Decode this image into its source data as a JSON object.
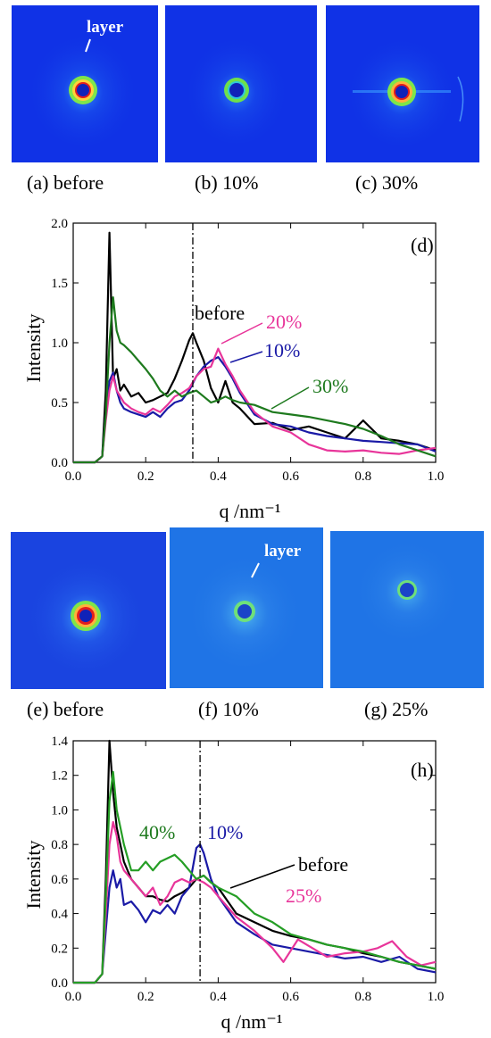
{
  "patterns_top": [
    {
      "caption": "(a) before",
      "annotation": "layer",
      "bg": "#1032e6",
      "ring": "strong",
      "streak": false
    },
    {
      "caption": "(b) 10%",
      "annotation": "",
      "bg": "#1032e6",
      "ring": "medium",
      "streak": false
    },
    {
      "caption": "(c) 30%",
      "annotation": "",
      "bg": "#1032e6",
      "ring": "strong",
      "streak": true
    }
  ],
  "patterns_bottom": [
    {
      "caption": "(e) before",
      "annotation": "",
      "bg": "#1a44e0",
      "ring": "strong",
      "streak": false
    },
    {
      "caption": "(f) 10%",
      "annotation": "layer",
      "bg": "#1f74e6",
      "ring": "weak",
      "streak": false
    },
    {
      "caption": "(g) 25%",
      "annotation": "",
      "bg": "#1f74e6",
      "ring": "weak",
      "streak": false
    }
  ],
  "chart_data": [
    {
      "type": "line",
      "panel_label": "(d)",
      "xlabel": "q /nm⁻¹",
      "ylabel": "Intensity",
      "xlim": [
        0.0,
        1.0
      ],
      "ylim": [
        0.0,
        2.0
      ],
      "xticks": [
        "0.0",
        "0.2",
        "0.4",
        "0.6",
        "0.8",
        "1.0"
      ],
      "yticks": [
        "0.0",
        "0.5",
        "1.0",
        "1.5",
        "2.0"
      ],
      "reference_line_q": 0.33,
      "series": [
        {
          "name": "before",
          "color": "#000000",
          "label_color": "#000000",
          "x": [
            0.0,
            0.06,
            0.08,
            0.09,
            0.1,
            0.11,
            0.12,
            0.13,
            0.14,
            0.16,
            0.18,
            0.2,
            0.22,
            0.24,
            0.26,
            0.28,
            0.3,
            0.32,
            0.33,
            0.34,
            0.36,
            0.38,
            0.4,
            0.42,
            0.44,
            0.46,
            0.5,
            0.55,
            0.6,
            0.65,
            0.7,
            0.75,
            0.8,
            0.85,
            0.9,
            0.95,
            1.0
          ],
          "y": [
            0.0,
            0.0,
            0.05,
            0.6,
            1.92,
            0.7,
            0.78,
            0.6,
            0.65,
            0.55,
            0.58,
            0.5,
            0.52,
            0.55,
            0.58,
            0.7,
            0.85,
            1.02,
            1.08,
            1.0,
            0.85,
            0.62,
            0.5,
            0.68,
            0.5,
            0.45,
            0.32,
            0.33,
            0.27,
            0.3,
            0.25,
            0.2,
            0.35,
            0.2,
            0.18,
            0.15,
            0.1
          ]
        },
        {
          "name": "10%",
          "color": "#1a1aa6",
          "label_color": "#1a1aa6",
          "x": [
            0.0,
            0.06,
            0.08,
            0.09,
            0.1,
            0.11,
            0.12,
            0.13,
            0.14,
            0.16,
            0.18,
            0.2,
            0.22,
            0.24,
            0.26,
            0.28,
            0.3,
            0.32,
            0.34,
            0.36,
            0.38,
            0.4,
            0.42,
            0.44,
            0.46,
            0.5,
            0.55,
            0.6,
            0.65,
            0.7,
            0.75,
            0.8,
            0.85,
            0.9,
            0.95,
            1.0
          ],
          "y": [
            0.0,
            0.0,
            0.05,
            0.4,
            0.68,
            0.75,
            0.6,
            0.5,
            0.45,
            0.42,
            0.4,
            0.38,
            0.42,
            0.38,
            0.45,
            0.5,
            0.52,
            0.6,
            0.72,
            0.8,
            0.85,
            0.88,
            0.8,
            0.7,
            0.58,
            0.4,
            0.32,
            0.3,
            0.25,
            0.22,
            0.2,
            0.18,
            0.17,
            0.16,
            0.15,
            0.09
          ]
        },
        {
          "name": "20%",
          "color": "#e8359a",
          "label_color": "#e8359a",
          "x": [
            0.0,
            0.06,
            0.08,
            0.09,
            0.1,
            0.11,
            0.12,
            0.13,
            0.14,
            0.16,
            0.18,
            0.2,
            0.22,
            0.24,
            0.26,
            0.28,
            0.3,
            0.32,
            0.34,
            0.36,
            0.38,
            0.4,
            0.42,
            0.44,
            0.46,
            0.5,
            0.55,
            0.6,
            0.65,
            0.7,
            0.75,
            0.8,
            0.85,
            0.9,
            0.95,
            1.0
          ],
          "y": [
            0.0,
            0.0,
            0.05,
            0.35,
            0.6,
            0.72,
            0.6,
            0.55,
            0.5,
            0.45,
            0.42,
            0.4,
            0.45,
            0.42,
            0.48,
            0.55,
            0.58,
            0.62,
            0.72,
            0.78,
            0.8,
            0.95,
            0.82,
            0.72,
            0.6,
            0.42,
            0.3,
            0.25,
            0.15,
            0.1,
            0.09,
            0.1,
            0.08,
            0.07,
            0.1,
            0.12
          ]
        },
        {
          "name": "30%",
          "color": "#1e7a1e",
          "label_color": "#1e7a1e",
          "x": [
            0.0,
            0.06,
            0.08,
            0.09,
            0.1,
            0.11,
            0.12,
            0.13,
            0.14,
            0.16,
            0.18,
            0.2,
            0.22,
            0.24,
            0.26,
            0.28,
            0.3,
            0.32,
            0.34,
            0.36,
            0.38,
            0.4,
            0.42,
            0.44,
            0.46,
            0.5,
            0.55,
            0.6,
            0.65,
            0.7,
            0.75,
            0.8,
            0.85,
            0.9,
            0.95,
            1.0
          ],
          "y": [
            0.0,
            0.0,
            0.05,
            0.4,
            1.0,
            1.38,
            1.1,
            1.0,
            0.98,
            0.92,
            0.85,
            0.78,
            0.7,
            0.6,
            0.55,
            0.6,
            0.55,
            0.58,
            0.6,
            0.55,
            0.5,
            0.52,
            0.55,
            0.52,
            0.5,
            0.48,
            0.42,
            0.4,
            0.38,
            0.35,
            0.32,
            0.28,
            0.22,
            0.15,
            0.1,
            0.05
          ]
        }
      ],
      "annotations": [
        "before",
        "20%",
        "10%",
        "30%"
      ]
    },
    {
      "type": "line",
      "panel_label": "(h)",
      "xlabel": "q /nm⁻¹",
      "ylabel": "Intensity",
      "xlim": [
        0.0,
        1.0
      ],
      "ylim": [
        0.0,
        1.4
      ],
      "xticks": [
        "0.0",
        "0.2",
        "0.4",
        "0.6",
        "0.8",
        "1.0"
      ],
      "yticks": [
        "0.0",
        "0.2",
        "0.4",
        "0.6",
        "0.8",
        "1.0",
        "1.2",
        "1.4"
      ],
      "reference_line_q": 0.35,
      "series": [
        {
          "name": "before",
          "color": "#000000",
          "label_color": "#000000",
          "x": [
            0.0,
            0.06,
            0.08,
            0.09,
            0.1,
            0.11,
            0.12,
            0.13,
            0.14,
            0.16,
            0.18,
            0.2,
            0.22,
            0.24,
            0.26,
            0.28,
            0.3,
            0.32,
            0.34,
            0.36,
            0.38,
            0.4,
            0.45,
            0.5,
            0.55,
            0.6,
            0.65,
            0.7,
            0.75,
            0.8,
            0.85,
            0.9,
            0.95,
            1.0
          ],
          "y": [
            0.0,
            0.0,
            0.05,
            0.6,
            1.4,
            1.1,
            0.9,
            0.8,
            0.7,
            0.6,
            0.55,
            0.5,
            0.5,
            0.48,
            0.47,
            0.5,
            0.52,
            0.55,
            0.6,
            0.62,
            0.58,
            0.55,
            0.4,
            0.35,
            0.3,
            0.27,
            0.25,
            0.22,
            0.2,
            0.17,
            0.15,
            0.12,
            0.1,
            0.08
          ]
        },
        {
          "name": "10%",
          "color": "#1a1aa6",
          "label_color": "#1a1aa6",
          "x": [
            0.0,
            0.06,
            0.08,
            0.09,
            0.1,
            0.11,
            0.12,
            0.13,
            0.14,
            0.16,
            0.18,
            0.2,
            0.22,
            0.24,
            0.26,
            0.28,
            0.3,
            0.32,
            0.34,
            0.35,
            0.36,
            0.38,
            0.4,
            0.45,
            0.5,
            0.55,
            0.6,
            0.65,
            0.7,
            0.75,
            0.8,
            0.85,
            0.9,
            0.95,
            1.0
          ],
          "y": [
            0.0,
            0.0,
            0.05,
            0.3,
            0.55,
            0.65,
            0.55,
            0.6,
            0.45,
            0.47,
            0.42,
            0.35,
            0.42,
            0.4,
            0.45,
            0.4,
            0.5,
            0.55,
            0.78,
            0.8,
            0.75,
            0.6,
            0.5,
            0.35,
            0.28,
            0.22,
            0.2,
            0.18,
            0.16,
            0.14,
            0.15,
            0.12,
            0.15,
            0.08,
            0.06
          ]
        },
        {
          "name": "25%",
          "color": "#e8359a",
          "label_color": "#e8359a",
          "x": [
            0.0,
            0.06,
            0.08,
            0.09,
            0.1,
            0.11,
            0.12,
            0.13,
            0.14,
            0.16,
            0.18,
            0.2,
            0.22,
            0.24,
            0.26,
            0.28,
            0.3,
            0.32,
            0.34,
            0.36,
            0.38,
            0.4,
            0.45,
            0.5,
            0.55,
            0.58,
            0.62,
            0.66,
            0.7,
            0.75,
            0.8,
            0.84,
            0.88,
            0.92,
            0.96,
            1.0
          ],
          "y": [
            0.0,
            0.0,
            0.05,
            0.4,
            0.8,
            0.93,
            0.85,
            0.7,
            0.65,
            0.6,
            0.55,
            0.5,
            0.55,
            0.45,
            0.5,
            0.58,
            0.6,
            0.58,
            0.6,
            0.58,
            0.55,
            0.5,
            0.38,
            0.3,
            0.2,
            0.12,
            0.25,
            0.2,
            0.15,
            0.17,
            0.18,
            0.2,
            0.24,
            0.15,
            0.1,
            0.12
          ]
        },
        {
          "name": "40%",
          "color": "#259e25",
          "label_color": "#1e7a1e",
          "x": [
            0.0,
            0.06,
            0.08,
            0.09,
            0.1,
            0.11,
            0.12,
            0.13,
            0.14,
            0.16,
            0.18,
            0.2,
            0.22,
            0.24,
            0.26,
            0.28,
            0.3,
            0.32,
            0.34,
            0.36,
            0.38,
            0.4,
            0.45,
            0.5,
            0.55,
            0.6,
            0.65,
            0.7,
            0.75,
            0.8,
            0.85,
            0.9,
            0.95,
            1.0
          ],
          "y": [
            0.0,
            0.0,
            0.05,
            0.5,
            1.05,
            1.22,
            1.0,
            0.9,
            0.8,
            0.65,
            0.65,
            0.7,
            0.65,
            0.7,
            0.72,
            0.74,
            0.7,
            0.65,
            0.6,
            0.62,
            0.58,
            0.55,
            0.5,
            0.4,
            0.35,
            0.28,
            0.25,
            0.22,
            0.2,
            0.18,
            0.15,
            0.12,
            0.1,
            0.08
          ]
        }
      ],
      "annotations": [
        "40%",
        "10%",
        "before",
        "25%"
      ]
    }
  ]
}
